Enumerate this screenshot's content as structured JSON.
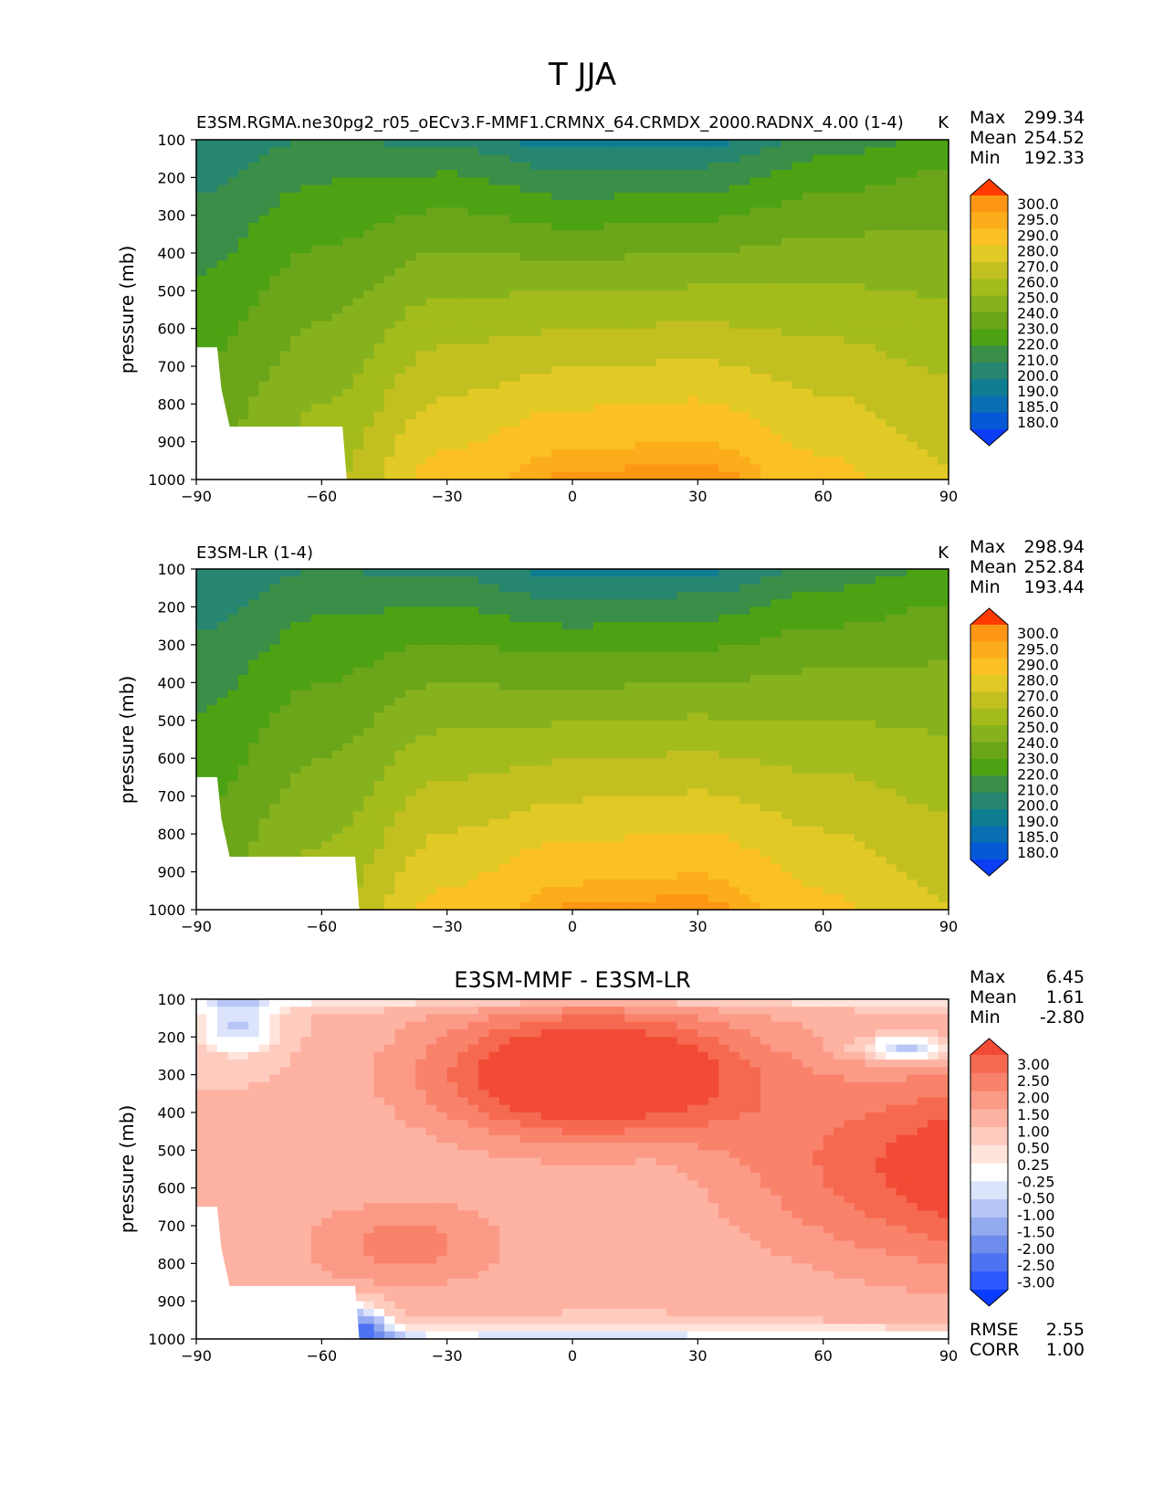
{
  "figure": {
    "title": "T JJA"
  },
  "colors": {
    "temperature_levels": [
      "#0b3df7",
      "#0659d6",
      "#0a6eb3",
      "#0e7d91",
      "#27866f",
      "#3a8e48",
      "#4da213",
      "#6ba51a",
      "#86b21d",
      "#a3bb1b",
      "#c2c021",
      "#e1c926",
      "#fbc024",
      "#fcad1b",
      "#fd9713",
      "#fd7e0b",
      "#fe6505",
      "#ff3b00"
    ],
    "difference_levels": [
      "#0a3cff",
      "#2e58ff",
      "#4d72f2",
      "#6e8ceb",
      "#93aaf0",
      "#b7c6f7",
      "#dce4fb",
      "#ffffff",
      "#ffe4dc",
      "#fecbbf",
      "#fdb2a2",
      "#fb9a86",
      "#f9826b",
      "#f66951",
      "#f24b35",
      "#ef2a16"
    ]
  },
  "chart_data": [
    {
      "type": "contour",
      "panel": "test",
      "title": "E3SM.RGMA.ne30pg2_r05_oECv3.F-MMF1.CRMNX_64.CRMDX_2000.RADNX_4.00 (1-4)",
      "units": "K",
      "ylabel": "pressure (mb)",
      "xlabel": "",
      "xlim": [
        -90,
        90
      ],
      "ylim": [
        1000,
        100
      ],
      "x_ticks": [
        "−90",
        "−60",
        "−30",
        "0",
        "30",
        "60",
        "90"
      ],
      "y_ticks": [
        "100",
        "200",
        "300",
        "400",
        "500",
        "600",
        "700",
        "800",
        "900",
        "1000"
      ],
      "contour_levels": [
        "180.0",
        "185.0",
        "190.0",
        "200.0",
        "210.0",
        "220.0",
        "230.0",
        "240.0",
        "250.0",
        "260.0",
        "270.0",
        "280.0",
        "290.0",
        "295.0",
        "300.0"
      ],
      "stats": {
        "max_label": "Max",
        "max": "299.34",
        "mean_label": "Mean",
        "mean": "254.52",
        "min_label": "Min",
        "min": "192.33"
      },
      "profile": {
        "lat": [
          -90,
          -60,
          -30,
          0,
          30,
          60,
          90
        ],
        "surface_T": [
          240,
          258,
          285,
          297,
          299,
          284,
          272
        ],
        "tropopause_T": [
          200,
          210,
          206,
          192,
          194,
          212,
          222
        ]
      }
    },
    {
      "type": "contour",
      "panel": "reference",
      "title": "E3SM-LR (1-4)",
      "units": "K",
      "ylabel": "pressure (mb)",
      "xlabel": "",
      "xlim": [
        -90,
        90
      ],
      "ylim": [
        1000,
        100
      ],
      "x_ticks": [
        "−90",
        "−60",
        "−30",
        "0",
        "30",
        "60",
        "90"
      ],
      "y_ticks": [
        "100",
        "200",
        "300",
        "400",
        "500",
        "600",
        "700",
        "800",
        "900",
        "1000"
      ],
      "contour_levels": [
        "180.0",
        "185.0",
        "190.0",
        "200.0",
        "210.0",
        "220.0",
        "230.0",
        "240.0",
        "250.0",
        "260.0",
        "270.0",
        "280.0",
        "290.0",
        "295.0",
        "300.0"
      ],
      "stats": {
        "max_label": "Max",
        "max": "298.94",
        "mean_label": "Mean",
        "mean": "252.84",
        "min_label": "Min",
        "min": "193.44"
      },
      "profile": {
        "lat": [
          -90,
          -60,
          -30,
          0,
          30,
          60,
          90
        ],
        "surface_T": [
          239,
          257,
          284,
          296,
          298,
          283,
          271
        ],
        "tropopause_T": [
          199,
          209,
          205,
          193,
          195,
          211,
          221
        ]
      }
    },
    {
      "type": "contour",
      "panel": "difference",
      "title": "E3SM-MMF - E3SM-LR",
      "units": "",
      "ylabel": "pressure (mb)",
      "xlabel": "",
      "xlim": [
        -90,
        90
      ],
      "ylim": [
        1000,
        100
      ],
      "x_ticks": [
        "−90",
        "−60",
        "−30",
        "0",
        "30",
        "60",
        "90"
      ],
      "y_ticks": [
        "100",
        "200",
        "300",
        "400",
        "500",
        "600",
        "700",
        "800",
        "900",
        "1000"
      ],
      "contour_levels": [
        "-3.00",
        "-2.50",
        "-2.00",
        "-1.50",
        "-1.00",
        "-0.50",
        "-0.25",
        "0.25",
        "0.50",
        "1.00",
        "1.50",
        "2.00",
        "2.50",
        "3.00"
      ],
      "stats": {
        "max_label": "Max",
        "max": "6.45",
        "mean_label": "Mean",
        "mean": "1.61",
        "min_label": "Min",
        "min": "-2.80",
        "rmse_label": "RMSE",
        "rmse": "2.55",
        "corr_label": "CORR",
        "corr": "1.00"
      }
    }
  ]
}
